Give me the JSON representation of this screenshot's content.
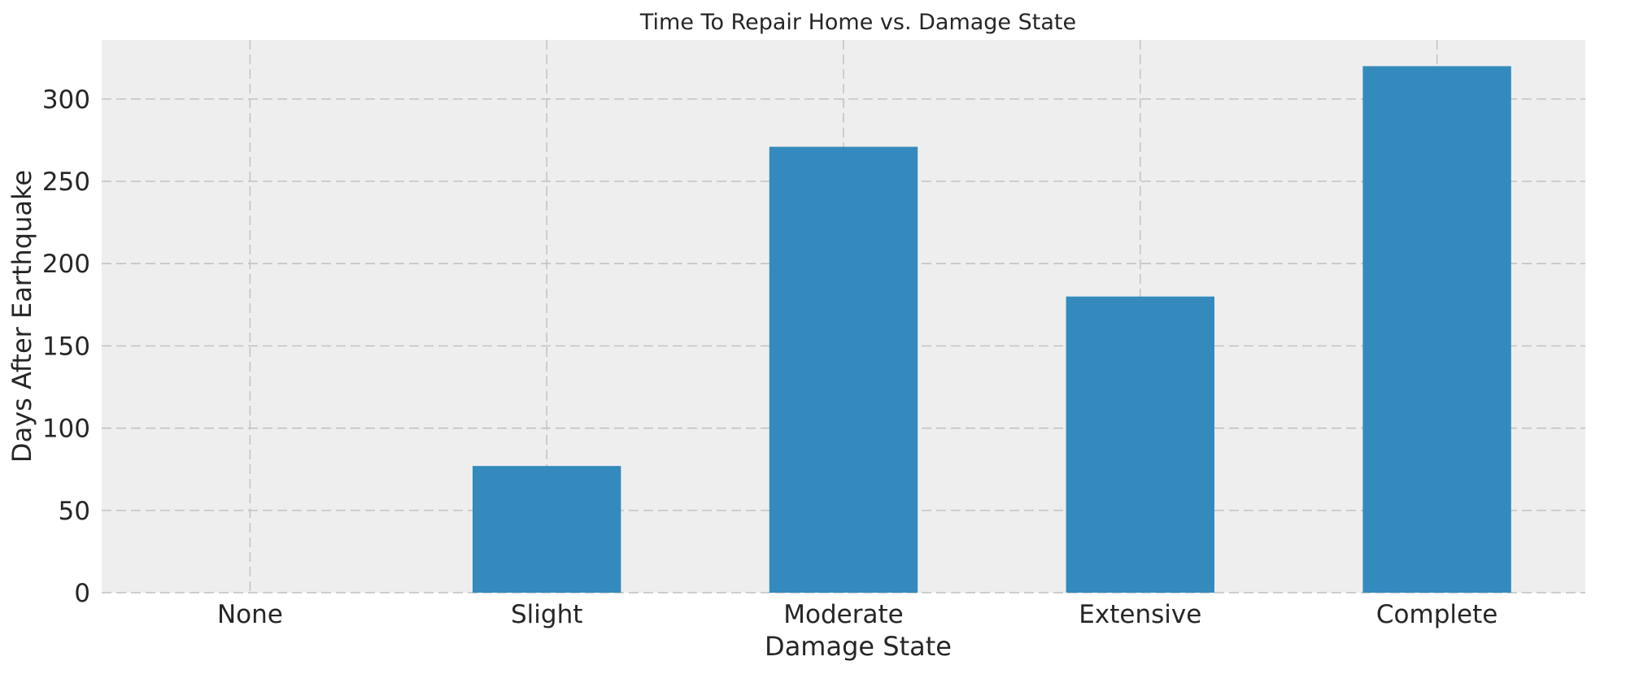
{
  "chart_data": {
    "type": "bar",
    "title": "Time To Repair Home vs. Damage State",
    "xlabel": "Damage State",
    "ylabel": "Days After Earthquake",
    "categories": [
      "None",
      "Slight",
      "Moderate",
      "Extensive",
      "Complete"
    ],
    "values": [
      0,
      77,
      271,
      180,
      320
    ],
    "ylim": [
      0,
      336
    ],
    "yticks": [
      0,
      50,
      100,
      150,
      200,
      250,
      300
    ],
    "grid": true,
    "colors": {
      "bar": "#348abd",
      "plot_background": "#eeeeee",
      "grid": "#bfbfbf",
      "text": "#262626"
    }
  }
}
